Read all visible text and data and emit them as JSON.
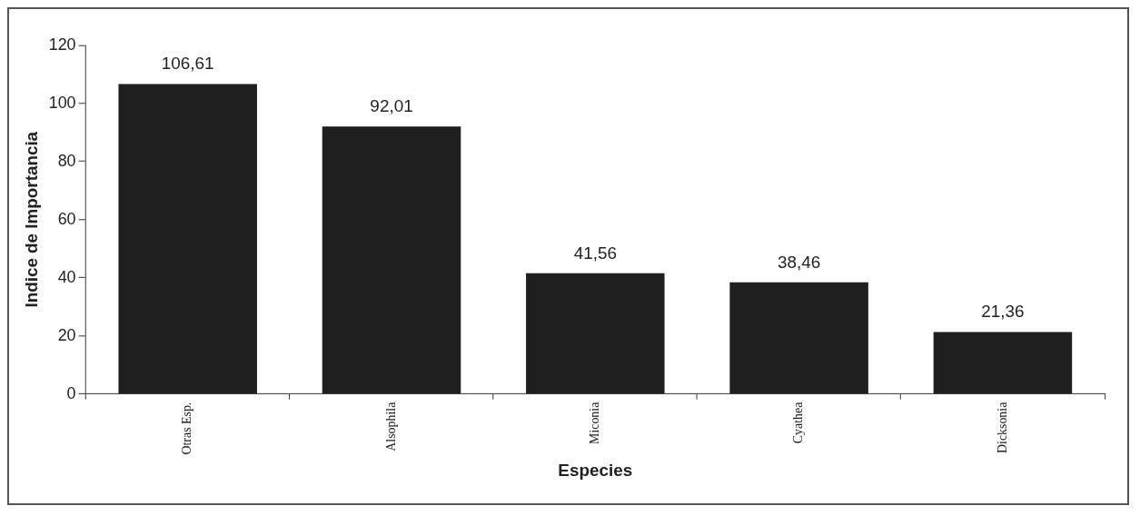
{
  "chart_data": {
    "type": "bar",
    "xlabel": "Especies",
    "ylabel": "Indice de Importancia",
    "categories": [
      "Otras Esp.",
      "Alsophila",
      "Miconia",
      "Cyathea",
      "Dicksonia"
    ],
    "values": [
      106.61,
      92.01,
      41.56,
      38.46,
      21.36
    ],
    "value_labels": [
      "106,61",
      "92,01",
      "41,56",
      "38,46",
      "21,36"
    ],
    "color": "#1f1f1f",
    "ylim": [
      0,
      120
    ],
    "yticks": [
      0,
      20,
      40,
      60,
      80,
      100,
      120
    ],
    "grid": false,
    "legend": false
  }
}
